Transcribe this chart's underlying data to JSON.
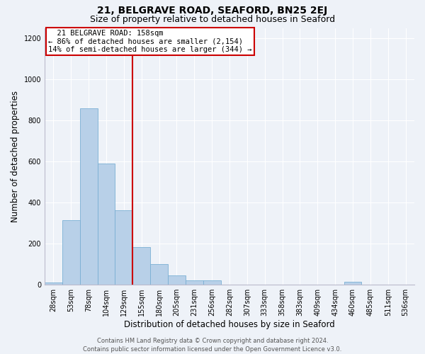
{
  "title": "21, BELGRAVE ROAD, SEAFORD, BN25 2EJ",
  "subtitle": "Size of property relative to detached houses in Seaford",
  "xlabel": "Distribution of detached houses by size in Seaford",
  "ylabel": "Number of detached properties",
  "bar_color": "#b8d0e8",
  "bar_edge_color": "#7aafd4",
  "background_color": "#eef2f8",
  "grid_color": "#ffffff",
  "bin_labels": [
    "28sqm",
    "53sqm",
    "78sqm",
    "104sqm",
    "129sqm",
    "155sqm",
    "180sqm",
    "205sqm",
    "231sqm",
    "256sqm",
    "282sqm",
    "307sqm",
    "333sqm",
    "358sqm",
    "383sqm",
    "409sqm",
    "434sqm",
    "460sqm",
    "485sqm",
    "511sqm",
    "536sqm"
  ],
  "bar_values": [
    10,
    315,
    860,
    592,
    362,
    185,
    100,
    47,
    22,
    20,
    0,
    0,
    0,
    0,
    0,
    0,
    0,
    13,
    0,
    0,
    0
  ],
  "vline_index": 5,
  "vline_color": "#cc0000",
  "annotation_line1": "  21 BELGRAVE ROAD: 158sqm",
  "annotation_line2": "← 86% of detached houses are smaller (2,154)",
  "annotation_line3": "14% of semi-detached houses are larger (344) →",
  "ylim": [
    0,
    1250
  ],
  "yticks": [
    0,
    200,
    400,
    600,
    800,
    1000,
    1200
  ],
  "footer_text": "Contains HM Land Registry data © Crown copyright and database right 2024.\nContains public sector information licensed under the Open Government Licence v3.0.",
  "title_fontsize": 10,
  "subtitle_fontsize": 9,
  "xlabel_fontsize": 8.5,
  "ylabel_fontsize": 8.5,
  "tick_fontsize": 7,
  "annotation_fontsize": 7.5,
  "footer_fontsize": 6
}
